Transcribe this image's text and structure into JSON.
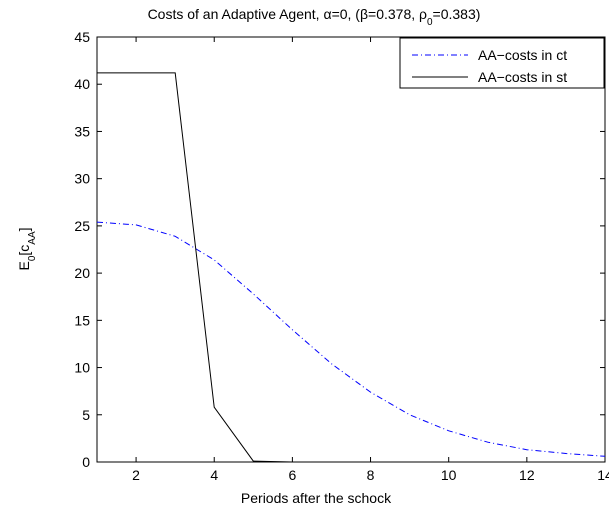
{
  "chart_data": {
    "type": "line",
    "title_parts": {
      "prefix": "Costs of an Adaptive Agent, ",
      "alpha": "α=0, (β=0.378, ρ",
      "rho_sub": "0",
      "suffix": "=0.383)"
    },
    "xlabel": "Periods after the schock",
    "ylabel_parts": {
      "main": "E",
      "sub0": "0",
      "bracket_open": "[c",
      "sub1": "AA",
      "bracket_close": "]"
    },
    "xlim": [
      1,
      14
    ],
    "ylim": [
      0,
      45
    ],
    "xticks": [
      2,
      4,
      6,
      8,
      10,
      12,
      14
    ],
    "yticks": [
      0,
      5,
      10,
      15,
      20,
      25,
      30,
      35,
      40,
      45
    ],
    "legend_position": "top-right",
    "series": [
      {
        "name": "AA−costs in ct",
        "color": "#0000ff",
        "style": "dashdot",
        "x": [
          1,
          2,
          3,
          4,
          5,
          6,
          7,
          8,
          9,
          10,
          11,
          12,
          13,
          14
        ],
        "y": [
          25.4,
          25.1,
          23.9,
          21.4,
          17.8,
          14.0,
          10.4,
          7.4,
          5.0,
          3.3,
          2.1,
          1.3,
          0.9,
          0.6
        ]
      },
      {
        "name": "AA−costs in st",
        "color": "#000000",
        "style": "solid",
        "x": [
          1,
          2,
          3,
          4,
          5,
          6,
          7,
          8,
          9,
          10,
          11,
          12,
          13,
          14
        ],
        "y": [
          41.2,
          41.2,
          41.2,
          5.8,
          0.1,
          0.0,
          0.0,
          0.0,
          0.0,
          0.0,
          0.0,
          0.0,
          0.0,
          0.0
        ]
      }
    ]
  }
}
